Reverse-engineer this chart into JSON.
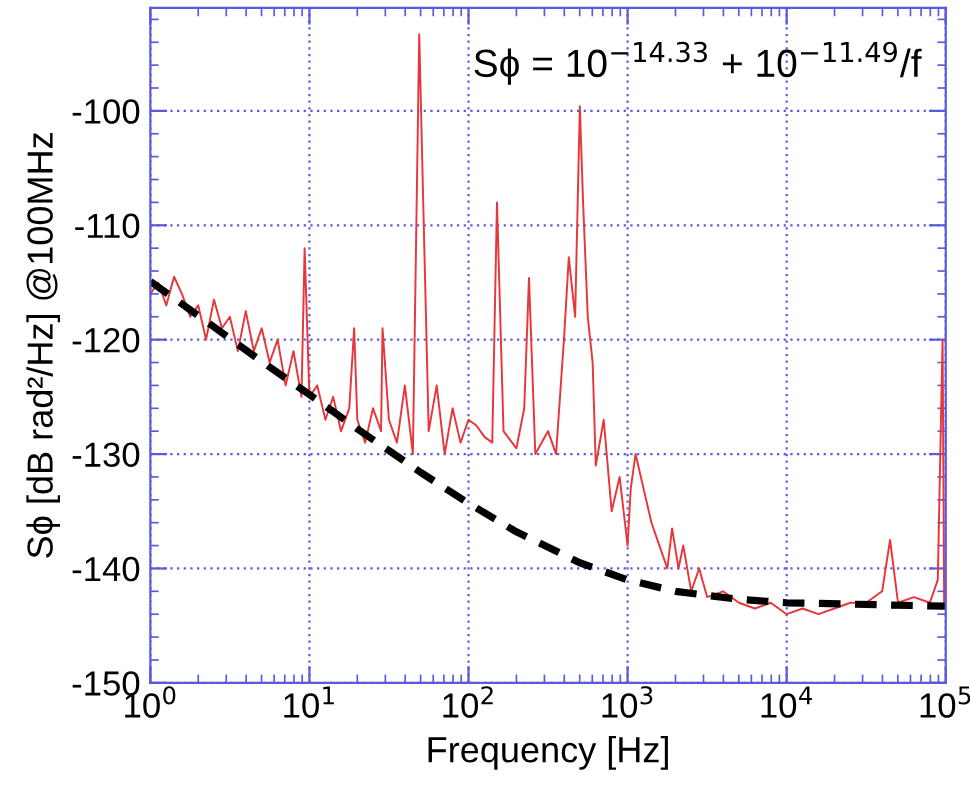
{
  "chart_data": {
    "type": "line",
    "xlabel": "Frequency [Hz]",
    "ylabel": "Sϕ [dB rad²/Hz] @100MHz",
    "annotations": [
      "Sϕ = 10$^{−14.33}$ + 10$^{−11.49}$/f"
    ],
    "log": "x",
    "grid": true,
    "xlim": [
      1,
      100000
    ],
    "ylim": [
      -150,
      -91
    ],
    "xticks": [
      {
        "value": 1,
        "label": "10$^{0}$"
      },
      {
        "value": 10,
        "label": "10$^{1}$"
      },
      {
        "value": 100,
        "label": "10$^{2}$"
      },
      {
        "value": 1000,
        "label": "10$^{3}$"
      },
      {
        "value": 10000,
        "label": "10$^{4}$"
      },
      {
        "value": 100000,
        "label": "10$^{5}$"
      }
    ],
    "yticks": [
      -150,
      -140,
      -130,
      -120,
      -110,
      -100
    ],
    "series": [
      {
        "color": "#e8363a",
        "line_style": "solid",
        "x": [
          1,
          1.12,
          1.26,
          1.41,
          1.58,
          1.78,
          2.0,
          2.24,
          2.51,
          2.82,
          3.16,
          3.55,
          3.98,
          4.47,
          5.01,
          5.62,
          6.31,
          7.08,
          7.94,
          8.91,
          9.33,
          10,
          11.2,
          12.6,
          14.1,
          15.8,
          17.8,
          19.1,
          20,
          22.4,
          25.1,
          28.2,
          28.8,
          31.6,
          35.5,
          39.8,
          44.7,
          49,
          56.2,
          63.1,
          70.8,
          79.4,
          89.1,
          100,
          112,
          126,
          141,
          151,
          166,
          200,
          224,
          240,
          263,
          316,
          355,
          398,
          427,
          468,
          501,
          525,
          562,
          603,
          631,
          708,
          794,
          891,
          1000,
          1047,
          1122,
          1259,
          1413,
          1585,
          1778,
          1905,
          2089,
          2239,
          2512,
          2818,
          3162,
          3981,
          5012,
          6310,
          7943,
          10000,
          12589,
          15849,
          19953,
          25119,
          31623,
          39811,
          44668,
          50119,
          63096,
          79433,
          89125,
          95499,
          97724,
          100000
        ],
        "values": [
          -116,
          -115,
          -117,
          -114.5,
          -116,
          -118,
          -117,
          -120,
          -116.5,
          -119,
          -118,
          -121,
          -117.5,
          -121,
          -119,
          -122,
          -120,
          -124,
          -121,
          -125,
          -112,
          -125,
          -124,
          -127,
          -125,
          -128,
          -126,
          -119,
          -127,
          -129,
          -126,
          -128,
          -119,
          -127,
          -129,
          -124,
          -130,
          -93.3,
          -128,
          -124,
          -130,
          -126,
          -129,
          -127,
          -127.5,
          -128.5,
          -129,
          -108,
          -128,
          -129.5,
          -126,
          -114.6,
          -130,
          -128,
          -130,
          -120,
          -112.8,
          -118,
          -99.6,
          -108,
          -118,
          -122,
          -131,
          -127,
          -135,
          -132,
          -138,
          -133,
          -130,
          -133,
          -136,
          -138,
          -140,
          -136.5,
          -140,
          -138,
          -142,
          -140,
          -142.5,
          -142,
          -143,
          -143.5,
          -143,
          -144,
          -143.5,
          -144,
          -143.5,
          -143,
          -143,
          -142,
          -137.5,
          -143,
          -142.5,
          -143,
          -141,
          -120,
          -143,
          -143
        ]
      },
      {
        "color": "#000000",
        "line_style": "dashed",
        "x": [
          1,
          2,
          5,
          10,
          20,
          50,
          100,
          200,
          500,
          1000,
          2000,
          5000,
          10000,
          100000
        ],
        "values": [
          -114.9,
          -117.9,
          -121.9,
          -124.8,
          -127.8,
          -131.6,
          -134.3,
          -136.8,
          -139.5,
          -141.0,
          -142.0,
          -142.7,
          -143.0,
          -143.3
        ]
      }
    ]
  }
}
